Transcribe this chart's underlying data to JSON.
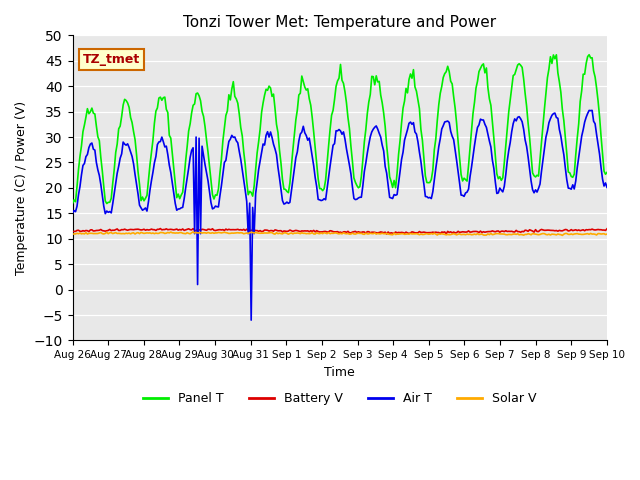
{
  "title": "Tonzi Tower Met: Temperature and Power",
  "ylabel": "Temperature (C) / Power (V)",
  "xlabel": "Time",
  "ylim": [
    -10,
    50
  ],
  "yticks": [
    -10,
    -5,
    0,
    5,
    10,
    15,
    20,
    25,
    30,
    35,
    40,
    45,
    50
  ],
  "tz_label": "TZ_tmet",
  "x_tick_labels": [
    "Aug 26",
    "Aug 27",
    "Aug 28",
    "Aug 29",
    "Aug 30",
    "Aug 31",
    "Sep 1",
    "Sep 2",
    "Sep 3",
    "Sep 4",
    "Sep 5",
    "Sep 6",
    "Sep 7",
    "Sep 8",
    "Sep 9",
    "Sep 10"
  ],
  "x_tick_positions": [
    0,
    1,
    2,
    3,
    4,
    5,
    6,
    7,
    8,
    9,
    10,
    11,
    12,
    13,
    14,
    15
  ],
  "legend_labels": [
    "Panel T",
    "Battery V",
    "Air T",
    "Solar V"
  ],
  "panel_t_color": "#00ee00",
  "battery_v_color": "#dd0000",
  "air_t_color": "#0000ee",
  "solar_v_color": "#ffaa00",
  "bg_color": "#e8e8e8",
  "n_days": 15,
  "points_per_day": 24,
  "spike1_day": 3.5,
  "spike1_val": 1.0,
  "spike2_day": 5.0,
  "spike2_val": -6.0
}
